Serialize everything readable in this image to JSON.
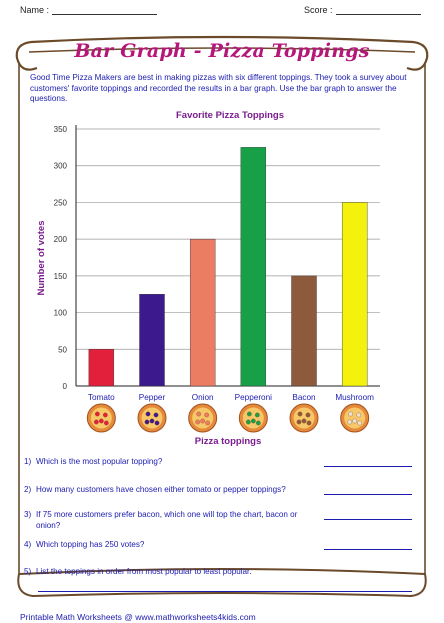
{
  "header": {
    "name_label": "Name :",
    "score_label": "Score :"
  },
  "title": "Bar Graph - Pizza Toppings",
  "intro": "Good Time Pizza Makers are best in making pizzas with six different toppings. They took a survey about customers' favorite toppings and recorded the results in a bar graph. Use the bar graph to answer the questions.",
  "chart_data": {
    "type": "bar",
    "title": "Favorite Pizza Toppings",
    "xlabel": "Pizza toppings",
    "ylabel": "Number of votes",
    "categories": [
      "Tomato",
      "Pepper",
      "Onion",
      "Pepperoni",
      "Bacon",
      "Mushroom"
    ],
    "values": [
      50,
      125,
      200,
      325,
      150,
      250
    ],
    "colors": [
      "#e2203c",
      "#3c1a8e",
      "#eb7d62",
      "#18a048",
      "#8d5a3c",
      "#f4f20c"
    ],
    "ylim": [
      0,
      350
    ],
    "yticks": [
      0,
      50,
      100,
      150,
      200,
      250,
      300,
      350
    ],
    "grid": true
  },
  "questions": [
    {
      "num": "1)",
      "text": "Which is the most popular topping?"
    },
    {
      "num": "2)",
      "text": "How many customers have chosen either tomato or pepper toppings?"
    },
    {
      "num": "3)",
      "text": "If 75 more customers prefer bacon, which one will top the chart, bacon or onion?"
    },
    {
      "num": "4)",
      "text": "Which topping has 250 votes?"
    },
    {
      "num": "5)",
      "text": "List the toppings in order from most popular to least popular."
    }
  ],
  "footer": "Printable Math Worksheets @ www.mathworksheets4kids.com"
}
